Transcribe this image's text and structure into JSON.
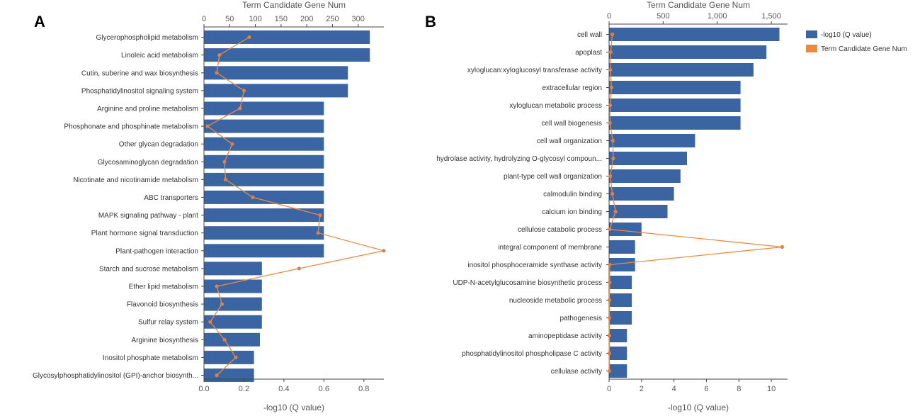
{
  "chart_data": [
    {
      "type": "bar",
      "panel_label": "A",
      "title": "",
      "xlabel": "-log10 (Q value)",
      "x2label": "Term Candidate Gene Num",
      "xlim": [
        0,
        0.9
      ],
      "x_ticks": [
        "0.0",
        "0.2",
        "0.4",
        "0.6",
        "0.8"
      ],
      "x2lim": [
        0,
        350
      ],
      "x2_ticks": [
        "0",
        "50",
        "100",
        "150",
        "200",
        "250",
        "300"
      ],
      "categories": [
        "Glycerophospholipid metabolism",
        "Linoleic acid metabolism",
        "Cutin, suberine and wax biosynthesis",
        "Phosphatidylinositol signaling system",
        "Arginine and proline metabolism",
        "Phosphonate and phosphinate metabolism",
        "Other glycan degradation",
        "Glycosaminoglycan degradation",
        "Nicotinate and nicotinamide metabolism",
        "ABC transporters",
        "MAPK signaling pathway - plant",
        "Plant hormone signal transduction",
        "Plant-pathogen interaction",
        "Starch and sucrose metabolism",
        "Ether lipid metabolism",
        "Flavonoid biosynthesis",
        "Sulfur relay system",
        "Arginine biosynthesis",
        "Inositol phosphate metabolism",
        "Glycosylphosphatidylinositol (GPI)-anchor biosynth..."
      ],
      "series": [
        {
          "name": "-log10 (Q value)",
          "chart": "bar",
          "axis": "bottom",
          "values": [
            0.83,
            0.83,
            0.72,
            0.72,
            0.6,
            0.6,
            0.6,
            0.6,
            0.6,
            0.6,
            0.6,
            0.6,
            0.6,
            0.29,
            0.29,
            0.29,
            0.29,
            0.28,
            0.25,
            0.25
          ]
        },
        {
          "name": "Term Candidate Gene Num",
          "chart": "line",
          "axis": "top",
          "values": [
            88,
            30,
            25,
            78,
            70,
            7,
            55,
            40,
            42,
            95,
            226,
            222,
            350,
            185,
            25,
            35,
            12,
            40,
            62,
            25
          ]
        }
      ],
      "colors": {
        "bar": "#3b64a3",
        "line": "#ed8a3f",
        "point": "#d9834c"
      }
    },
    {
      "type": "bar",
      "panel_label": "B",
      "title": "",
      "xlabel": "-log10 (Q value)",
      "x2label": "Term Candidate Gene Num",
      "xlim": [
        0,
        11
      ],
      "x_ticks": [
        "0",
        "2",
        "4",
        "6",
        "8",
        "10"
      ],
      "x2lim": [
        0,
        1650
      ],
      "x2_ticks": [
        "0",
        "500",
        "1,000",
        "1,500"
      ],
      "categories": [
        "cell wall",
        "apoplast",
        "xyloglucan:xyloglucosyl transferase activity",
        "extracellular region",
        "xyloglucan metabolic process",
        "cell wall biogenesis",
        "cell wall organization",
        "hydrolase activity, hydrolyzing O-glycosyl compoun...",
        "plant-type cell wall organization",
        "calmodulin binding",
        "calcium ion binding",
        "cellulose catabolic process",
        "integral component of membrane",
        "inositol phosphoceramide synthase activity",
        "UDP-N-acetylglucosamine biosynthetic process",
        "nucleoside metabolic process",
        "pathogenesis",
        "aminopeptidase activity",
        "phosphatidylinositol phospholipase C activity",
        "cellulase activity"
      ],
      "series": [
        {
          "name": "-log10 (Q value)",
          "chart": "bar",
          "axis": "bottom",
          "values": [
            10.5,
            9.7,
            8.9,
            8.1,
            8.1,
            8.1,
            5.3,
            4.8,
            4.4,
            4.0,
            3.6,
            2.0,
            1.6,
            1.6,
            1.4,
            1.4,
            1.4,
            1.1,
            1.1,
            1.1
          ]
        },
        {
          "name": "Term Candidate Gene Num",
          "chart": "line",
          "axis": "top",
          "values": [
            30,
            15,
            12,
            22,
            10,
            8,
            35,
            38,
            12,
            30,
            60,
            5,
            1600,
            5,
            5,
            3,
            3,
            2,
            2,
            2
          ]
        }
      ],
      "legend": {
        "position": "top-right",
        "entries": [
          "-log10 (Q value)",
          "Term Candidate Gene Num"
        ]
      },
      "colors": {
        "bar": "#3b64a3",
        "line": "#ed8a3f",
        "point": "#d9834c"
      }
    }
  ]
}
